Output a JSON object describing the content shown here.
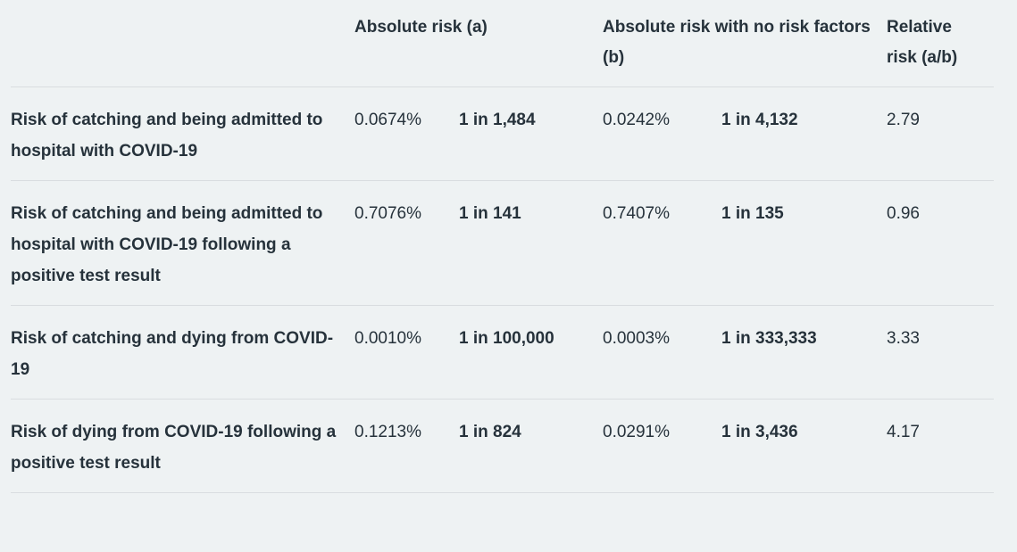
{
  "colors": {
    "background": "#eef2f3",
    "text": "#26323b",
    "divider": "#d9dde0"
  },
  "table": {
    "headers": {
      "description": "",
      "absolute_risk": "Absolute risk (a)",
      "absolute_risk_no_factors": "Absolute risk with no risk factors (b)",
      "relative_risk": "Relative risk (a/b)"
    },
    "rows": [
      {
        "label": "Risk of catching and being admitted to hospital with COVID-19",
        "absolute_risk_pct": "0.0674%",
        "absolute_risk_ratio": "1 in 1,484",
        "no_factors_pct": "0.0242%",
        "no_factors_ratio": "1 in 4,132",
        "relative_risk": "2.79"
      },
      {
        "label": "Risk of catching and being admitted to hospital with COVID-19 following a positive test result",
        "absolute_risk_pct": "0.7076%",
        "absolute_risk_ratio": "1 in 141",
        "no_factors_pct": "0.7407%",
        "no_factors_ratio": "1 in 135",
        "relative_risk": "0.96"
      },
      {
        "label": "Risk of catching and dying from COVID-19",
        "absolute_risk_pct": "0.0010%",
        "absolute_risk_ratio": "1 in 100,000",
        "no_factors_pct": "0.0003%",
        "no_factors_ratio": "1 in 333,333",
        "relative_risk": "3.33"
      },
      {
        "label": "Risk of dying from COVID-19 following a positive test result",
        "absolute_risk_pct": "0.1213%",
        "absolute_risk_ratio": "1 in 824",
        "no_factors_pct": "0.0291%",
        "no_factors_ratio": "1 in 3,436",
        "relative_risk": "4.17"
      }
    ]
  }
}
